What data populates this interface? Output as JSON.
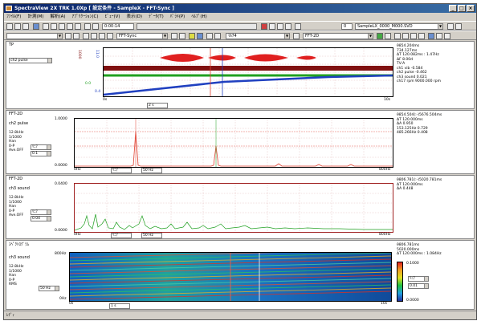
{
  "window": {
    "title": "SpectraView 2X TRK 1.0Xp [ 設定条件 - SampleX - FFT-Sync ]",
    "buttons": [
      "_",
      "□",
      "×"
    ]
  },
  "menu": [
    "ﾌｧｲﾙ(F)",
    "計測(M)",
    "解析(A)",
    "ｱﾌﾟﾘｹｰｼｮﾝ(C)",
    "ﾋﾞｭｰ(V)",
    "表示(D)",
    "ﾃﾞｰﾀ(T)",
    "ﾊﾟﾗﾒ(P)",
    "ﾍﾙﾌﾟ(H)"
  ],
  "toolbar1": {
    "time": "0:00:14",
    "file_no": "0",
    "file": "SampleLX_0000_M000.SVD"
  },
  "toolbar2": {
    "sync": "FFT-Sync",
    "mode": "ﾏﾙﾁ4",
    "view": "FFT-2D"
  },
  "panel_tp": {
    "title": "TP",
    "channel": "ch2 pulse",
    "xstart": "0s",
    "xend": "10s",
    "span": "2 s",
    "info": [
      "θ854.204ms",
      "734.127ms",
      "ΔT 120.082ms : 1.47Hz",
      "ΔF 8.00d"
    ],
    "info2": [
      "TV-A",
      "ch1 vib    -0.584",
      "ch2 pulse  -0.462",
      "ch3 sound   0.021",
      "ch17 rpm  9000.000 rpm"
    ],
    "yvals": [
      "1000",
      "0.0",
      "11.0",
      "0.4"
    ]
  },
  "panel_fft1": {
    "title": "FFT-2D",
    "channel": "ch2 pulse",
    "ytop": "1.0000",
    "ybot": "0.0000",
    "side": [
      "12.8kHz",
      "1/1000",
      "Han",
      "0-P",
      "Ave.OFF"
    ],
    "dd1": "ﾘﾆｱ",
    "dd2": "0.1",
    "xstart": "0Hz",
    "xend": "800Hz",
    "xdd": "ﾘﾆｱ",
    "xrange": "50 Hz",
    "info": [
      "θ854.504(:-)5676.504ms",
      "ΔT 120.000ms",
      "ΔA   0.950",
      "    153.125Hz  0.729",
      "    485.266Hz  0.408"
    ]
  },
  "panel_fft2": {
    "title": "FFT-2D",
    "channel": "ch3 sound",
    "ytop": "0.0400",
    "ybot": "0.0000",
    "side": [
      "12.8kHz",
      "1/1000",
      "Han",
      "0-P",
      "Ave.OFF"
    ],
    "dd1": "ﾘﾆｱ",
    "dd2": "0.04",
    "xstart": "0Hz",
    "xend": "800Hz",
    "xdd": "ﾘﾆｱ",
    "xrange": "50 Hz",
    "info": [
      "θ806.781(:-)5020.781ms",
      "ΔT 120.000ms",
      "ΔA   0.448"
    ]
  },
  "panel_spec": {
    "title": "ｽﾍﾟｸﾄﾛｸﾞﾗﾑ",
    "channel": "ch3 sound",
    "ytop": "800Hz",
    "ybot": "0Hz",
    "side": [
      "12.8kHz",
      "1/1000",
      "Han",
      "0-P",
      "RMS"
    ],
    "dd1": "50 Hz",
    "xstart": "0s",
    "xend": "10s",
    "span": "1 s",
    "info": [
      "θ806.781ms",
      "5020.000ms",
      "ΔT 120.000ms : 1.084Hz"
    ],
    "scale_top": "0.1000",
    "scale_bot": "0.0000",
    "sdd1": "ﾘﾆｱ",
    "sdd2": "0.01"
  },
  "status": "ﾚﾃﾞｨ",
  "colors": {
    "fft": "#e04030",
    "sound": "#20a020",
    "blue": "#2040c0",
    "darkred": "#801010"
  }
}
